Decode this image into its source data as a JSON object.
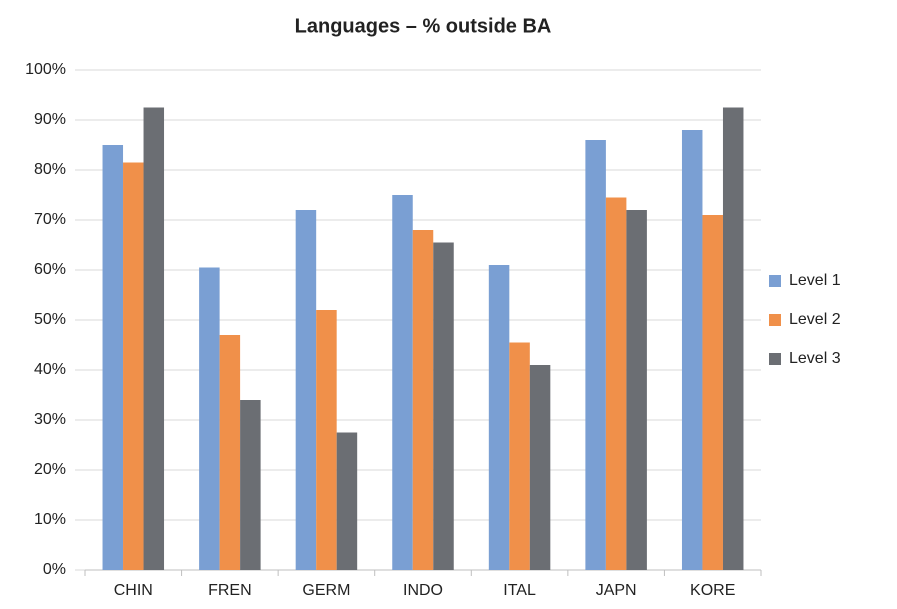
{
  "chart_data": {
    "type": "bar",
    "title": "Languages – % outside BA",
    "categories": [
      "CHIN",
      "FREN",
      "GERM",
      "INDO",
      "ITAL",
      "JAPN",
      "KORE"
    ],
    "series": [
      {
        "name": "Level 1",
        "color": "#7a9fd3",
        "values": [
          85,
          60.5,
          72,
          75,
          61,
          86,
          88
        ]
      },
      {
        "name": "Level 2",
        "color": "#f0904a",
        "values": [
          81.5,
          47,
          52,
          68,
          45.5,
          74.5,
          71
        ]
      },
      {
        "name": "Level 3",
        "color": "#6b6e73",
        "values": [
          92.5,
          34,
          27.5,
          65.5,
          41,
          72,
          92.5
        ]
      }
    ],
    "ylim": [
      0,
      100
    ],
    "yticks": [
      {
        "value": 0,
        "label": "0%"
      },
      {
        "value": 10,
        "label": "10%"
      },
      {
        "value": 20,
        "label": "20%"
      },
      {
        "value": 30,
        "label": "30%"
      },
      {
        "value": 40,
        "label": "40%"
      },
      {
        "value": 50,
        "label": "50%"
      },
      {
        "value": 60,
        "label": "60%"
      },
      {
        "value": 70,
        "label": "70%"
      },
      {
        "value": 80,
        "label": "80%"
      },
      {
        "value": 90,
        "label": "90%"
      },
      {
        "value": 100,
        "label": "100%"
      }
    ],
    "grid": true,
    "legend": "right"
  }
}
